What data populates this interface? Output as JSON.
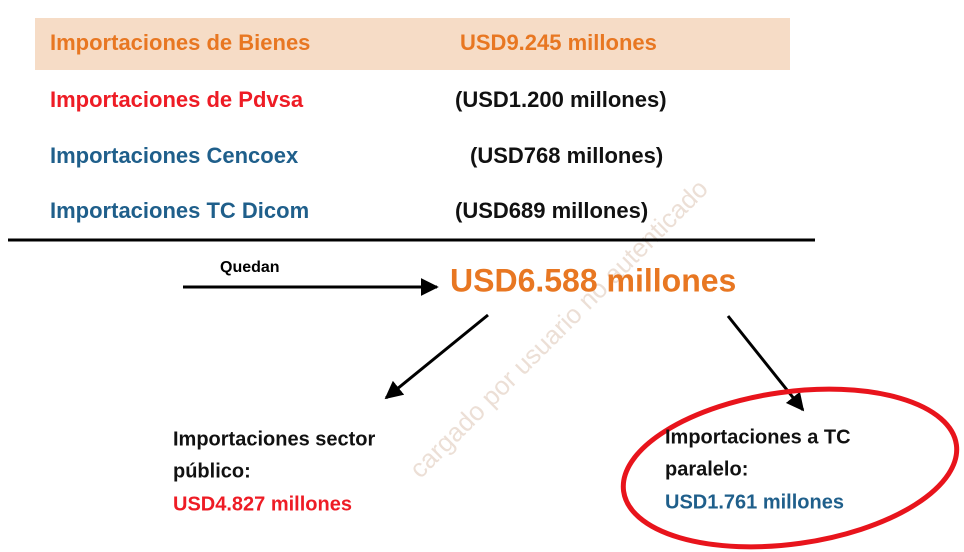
{
  "rows": [
    {
      "label": "Importaciones de Bienes",
      "value": "USD9.245 millones"
    },
    {
      "label": "Importaciones de Pdvsa",
      "value": "(USD1.200 millones)"
    },
    {
      "label": "Importaciones Cencoex",
      "value": "(USD768 millones)"
    },
    {
      "label": "Importaciones TC Dicom",
      "value": "(USD689 millones)"
    }
  ],
  "remainder": {
    "label": "Quedan",
    "value": "USD6.588 millones"
  },
  "branches": [
    {
      "title": [
        "Importaciones sector",
        "público:"
      ],
      "value": "USD4.827 millones"
    },
    {
      "title": [
        "Importaciones a TC",
        "paralelo:"
      ],
      "value": "USD1.761 millones"
    }
  ],
  "watermark": "cargado por usuario no autenticado"
}
